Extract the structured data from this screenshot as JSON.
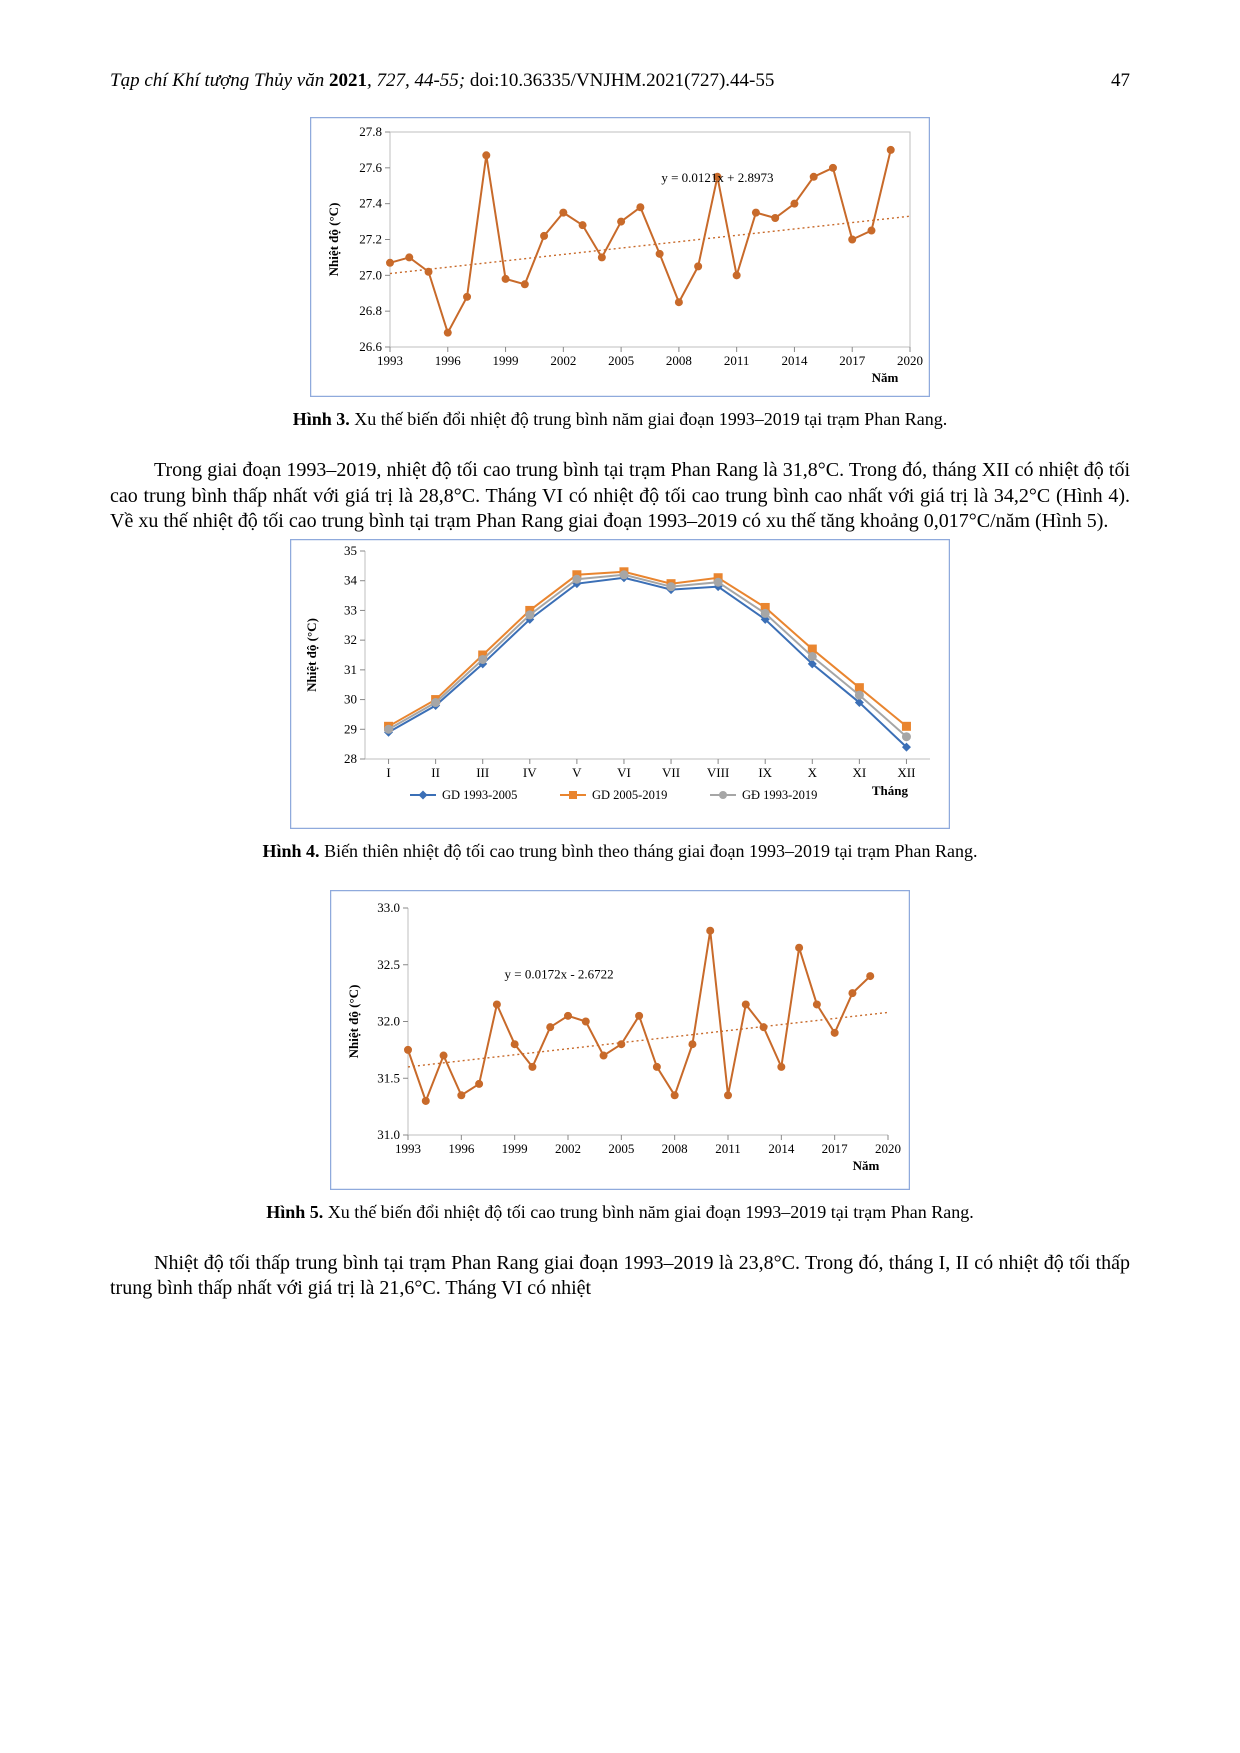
{
  "header": {
    "journal": "Tạp chí Khí tượng Thủy văn ",
    "year": "2021",
    "volume": ", 727",
    "pages": ", 44-55; ",
    "doi": "doi:10.36335/VNJHM.2021(727).44-55",
    "page_num": "47"
  },
  "fig3": {
    "caption_label": "Hình 3.",
    "caption_text": " Xu thế biến đổi nhiệt độ trung bình năm giai đoạn 1993–2019 tại trạm Phan Rang.",
    "type": "line",
    "ylabel": "Nhiệt độ (°C)",
    "xlabel": "Năm",
    "equation": "y = 0.0121x + 2.8973",
    "xticks": [
      1993,
      1996,
      1999,
      2002,
      2005,
      2008,
      2011,
      2014,
      2017,
      2020
    ],
    "yticks": [
      26.6,
      26.8,
      27.0,
      27.2,
      27.4,
      27.6,
      27.8
    ],
    "ylim": [
      26.6,
      27.8
    ],
    "xlim": [
      1993,
      2020
    ],
    "series_color": "#c86a2a",
    "trend_color": "#c86a2a",
    "marker_size": 4,
    "line_width": 2,
    "border_color": "#8faadc",
    "grid": false,
    "years": [
      1993,
      1994,
      1995,
      1996,
      1997,
      1998,
      1999,
      2000,
      2001,
      2002,
      2003,
      2004,
      2005,
      2006,
      2007,
      2008,
      2009,
      2010,
      2011,
      2012,
      2013,
      2014,
      2015,
      2016,
      2017,
      2018,
      2019
    ],
    "values": [
      27.07,
      27.1,
      27.02,
      26.68,
      26.88,
      27.67,
      26.98,
      26.95,
      27.22,
      27.35,
      27.28,
      27.1,
      27.3,
      27.38,
      27.12,
      26.85,
      27.05,
      27.55,
      27.0,
      27.35,
      27.32,
      27.4,
      27.55,
      27.6,
      27.2,
      27.25,
      27.7
    ],
    "trend": {
      "slope": 0.0121,
      "intercept_year": 1993,
      "start": 27.01,
      "end": 27.33
    }
  },
  "para1": "Trong giai đoạn 1993–2019, nhiệt độ tối cao trung bình tại trạm Phan Rang là 31,8°C. Trong đó, tháng XII có nhiệt độ tối cao trung bình thấp nhất với giá trị là 28,8°C. Tháng VI có nhiệt độ tối cao trung bình cao nhất với giá trị là 34,2°C (Hình 4). Về xu thế nhiệt độ tối cao trung bình tại trạm Phan Rang giai đoạn 1993–2019 có xu thế tăng khoảng 0,017°C/năm (Hình 5).",
  "fig4": {
    "caption_label": "Hình 4.",
    "caption_text": " Biến thiên nhiệt độ tối cao trung bình theo tháng giai đoạn 1993–2019 tại trạm Phan Rang.",
    "type": "multi-line",
    "ylabel": "Nhiệt độ (°C)",
    "xlabel": "Tháng",
    "months": [
      "I",
      "II",
      "III",
      "IV",
      "V",
      "VI",
      "VII",
      "VIII",
      "IX",
      "X",
      "XI",
      "XII"
    ],
    "yticks": [
      28,
      29,
      30,
      31,
      32,
      33,
      34,
      35
    ],
    "ylim": [
      28,
      35
    ],
    "border_color": "#8faadc",
    "marker_size": 4.5,
    "line_width": 2,
    "legend": [
      {
        "label": "GD 1993-2005",
        "color": "#3b6fb6",
        "marker": "diamond"
      },
      {
        "label": "GD 2005-2019",
        "color": "#e9852f",
        "marker": "square"
      },
      {
        "label": "GĐ 1993-2019",
        "color": "#a6a6a6",
        "marker": "circle"
      }
    ],
    "series": {
      "gd1993_2005": [
        28.9,
        29.8,
        31.2,
        32.7,
        33.9,
        34.1,
        33.7,
        33.8,
        32.7,
        31.2,
        29.9,
        28.4
      ],
      "gd2005_2019": [
        29.1,
        30.0,
        31.5,
        33.0,
        34.2,
        34.3,
        33.9,
        34.1,
        33.1,
        31.7,
        30.4,
        29.1
      ],
      "gd1993_2019": [
        29.0,
        29.9,
        31.35,
        32.85,
        34.05,
        34.2,
        33.8,
        33.95,
        32.9,
        31.45,
        30.15,
        28.75
      ]
    }
  },
  "fig5": {
    "caption_label": "Hình 5.",
    "caption_text": " Xu thế biến đổi nhiệt độ tối cao trung bình năm giai đoạn 1993–2019 tại trạm Phan Rang.",
    "type": "line",
    "ylabel": "Nhiệt độ (°C)",
    "xlabel": "Năm",
    "equation": "y = 0.0172x - 2.6722",
    "xticks": [
      1993,
      1996,
      1999,
      2002,
      2005,
      2008,
      2011,
      2014,
      2017,
      2020
    ],
    "yticks": [
      31.0,
      31.5,
      32.0,
      32.5,
      33.0
    ],
    "ylim": [
      31.0,
      33.0
    ],
    "xlim": [
      1993,
      2020
    ],
    "series_color": "#c86a2a",
    "trend_color": "#c86a2a",
    "marker_size": 4,
    "line_width": 2,
    "border_color": "#8faadc",
    "years": [
      1993,
      1994,
      1995,
      1996,
      1997,
      1998,
      1999,
      2000,
      2001,
      2002,
      2003,
      2004,
      2005,
      2006,
      2007,
      2008,
      2009,
      2010,
      2011,
      2012,
      2013,
      2014,
      2015,
      2016,
      2017,
      2018,
      2019
    ],
    "values": [
      31.75,
      31.3,
      31.7,
      31.35,
      31.45,
      32.15,
      31.8,
      31.6,
      31.95,
      32.05,
      32.0,
      31.7,
      31.8,
      32.05,
      31.6,
      31.35,
      31.8,
      32.8,
      31.35,
      32.15,
      31.95,
      31.6,
      32.65,
      32.15,
      31.9,
      32.25,
      32.4
    ],
    "trend": {
      "start": 31.6,
      "end": 32.08
    }
  },
  "para2": "Nhiệt độ tối thấp trung bình tại trạm Phan Rang giai đoạn 1993–2019 là 23,8°C. Trong đó, tháng I, II có nhiệt độ tối thấp trung bình thấp nhất với giá trị là 21,6°C. Tháng VI có nhiệt"
}
